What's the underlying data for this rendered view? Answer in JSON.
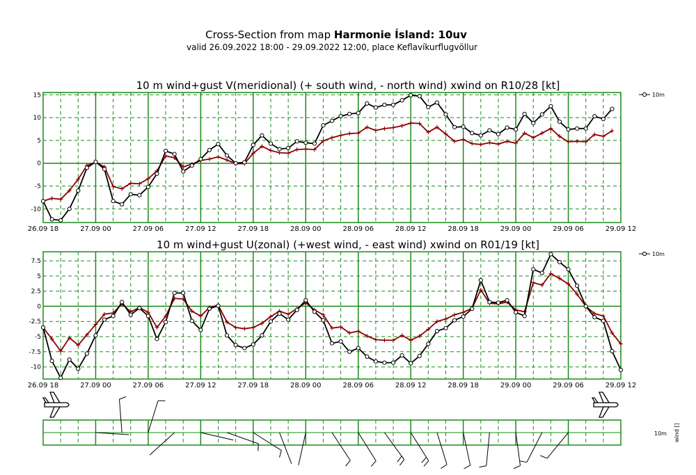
{
  "header": {
    "title_prefix": "Cross-Section from map ",
    "title_bold": "Harmonie Ísland: 10uv",
    "subtitle": "valid 26.09.2022 18:00 - 29.09.2022 12:00, place Keflavíkurflugvöllur"
  },
  "x_tick_labels": [
    "26.09 18",
    "27.09 00",
    "27.09 06",
    "27.09 12",
    "27.09 18",
    "28.09 00",
    "28.09 06",
    "28.09 12",
    "28.09 18",
    "29.09 00",
    "29.09 06",
    "29.09 12"
  ],
  "colors": {
    "grid": "#1a8a1a",
    "wind": "#000000",
    "xwind": "#8b0000"
  },
  "chart_data": [
    {
      "type": "line",
      "title": "10 m wind+gust V(meridional) (+ south wind, - north wind) xwind on R10/28 [kt]",
      "x_unit": "hours from 26.09 18:00",
      "ylim": [
        -13,
        15.5
      ],
      "yticks": [
        15,
        10,
        5,
        0,
        -5,
        -10
      ],
      "legend": "10m",
      "legend_position": "right",
      "grid": true,
      "series": [
        {
          "name": "10m",
          "marker": "circle",
          "color": "#000000",
          "values": [
            -8.3,
            -12.3,
            -12.5,
            -10,
            -6,
            -1,
            0.3,
            -1.3,
            -8.3,
            -9,
            -6.8,
            -7,
            -5.2,
            -2.3,
            2.7,
            2,
            -1.8,
            -0.5,
            0.9,
            2.9,
            4.2,
            1.7,
            0,
            0.2,
            4,
            6.1,
            4.3,
            3.1,
            3.3,
            4.8,
            4.5,
            4.3,
            8.3,
            9.3,
            10.3,
            10.8,
            11,
            13.1,
            12.2,
            12.8,
            12.8,
            13.8,
            14.9,
            14.7,
            12.3,
            13.3,
            10.7,
            7.9,
            8,
            6.6,
            6.1,
            7.2,
            6.4,
            7.8,
            7.4,
            10.8,
            8.8,
            10.7,
            12.5,
            9.1,
            7.4,
            7.6,
            7.6,
            10.3,
            9.7,
            11.9
          ]
        },
        {
          "marker": "plus",
          "color": "#8b0000",
          "values": [
            -8.3,
            -7.7,
            -7.9,
            -6,
            -3.5,
            -0.5,
            0.2,
            -0.8,
            -5.1,
            -5.6,
            -4.4,
            -4.5,
            -3.4,
            -1.7,
            1.6,
            1.2,
            -0.8,
            -0.2,
            0.6,
            0.9,
            1.4,
            0.7,
            -0.1,
            -0.1,
            2.2,
            3.7,
            2.8,
            2.3,
            2.2,
            3,
            3.1,
            3,
            4.9,
            5.6,
            6.1,
            6.5,
            6.6,
            7.9,
            7.2,
            7.6,
            7.8,
            8.2,
            8.8,
            8.7,
            6.8,
            7.9,
            6.4,
            4.8,
            5.2,
            4.3,
            4.1,
            4.5,
            4.2,
            4.8,
            4.4,
            6.6,
            5.6,
            6.6,
            7.6,
            5.9,
            4.7,
            4.8,
            4.7,
            6.3,
            5.9,
            7.1
          ]
        }
      ]
    },
    {
      "type": "line",
      "title": "10 m wind+gust U(zonal) (+west wind, - east wind) xwind on R01/19 [kt]",
      "x_unit": "hours from 26.09 18:00",
      "ylim": [
        -12,
        9
      ],
      "yticks": [
        7.5,
        5.0,
        2.5,
        0.0,
        -2.5,
        -5.0,
        -7.5,
        -10.0
      ],
      "legend": "10m",
      "legend_position": "right",
      "grid": true,
      "series": [
        {
          "name": "10m",
          "marker": "circle",
          "color": "#000000",
          "values": [
            -3.5,
            -9,
            -11.8,
            -8.8,
            -10.3,
            -7.8,
            -4.8,
            -2.2,
            -1.6,
            0.7,
            -1.4,
            -0.3,
            -1.6,
            -5.4,
            -2.6,
            2.2,
            2.2,
            -2.4,
            -3.9,
            -0.4,
            0.1,
            -4.8,
            -6.4,
            -6.9,
            -6.3,
            -4.8,
            -2.5,
            -1.2,
            -2.2,
            -0.6,
            1,
            -0.9,
            -2.3,
            -6.1,
            -5.8,
            -7.5,
            -6.9,
            -8.3,
            -9.1,
            -9.3,
            -9.3,
            -8.1,
            -9.4,
            -8.2,
            -6.2,
            -4.1,
            -3.6,
            -2.3,
            -1.7,
            -0.4,
            4.3,
            0.7,
            0.6,
            1,
            -1,
            -1.6,
            6.1,
            5.5,
            8.6,
            7.3,
            6.1,
            3.4,
            0,
            -1.8,
            -2.4,
            -7.4,
            -10.5
          ]
        },
        {
          "marker": "plus",
          "color": "#8b0000",
          "values": [
            -3.5,
            -5.4,
            -7.4,
            -5.2,
            -6.4,
            -4.7,
            -3,
            -1.3,
            -1.1,
            0.4,
            -0.9,
            -0.2,
            -1,
            -3.5,
            -1.6,
            1.3,
            1.2,
            -0.8,
            -1.6,
            -0.2,
            0.2,
            -2.6,
            -3.5,
            -3.7,
            -3.5,
            -2.8,
            -1.7,
            -0.8,
            -1.3,
            -0.4,
            0.6,
            -0.6,
            -1.4,
            -3.6,
            -3.4,
            -4.4,
            -4.1,
            -4.9,
            -5.5,
            -5.6,
            -5.6,
            -4.8,
            -5.6,
            -4.9,
            -3.8,
            -2.5,
            -2.1,
            -1.4,
            -1,
            -0.3,
            2.7,
            0.5,
            0.4,
            0.7,
            -0.6,
            -0.9,
            3.9,
            3.5,
            5.4,
            4.6,
            3.7,
            2,
            0,
            -1.2,
            -1.6,
            -4.4,
            -6.2
          ]
        }
      ]
    }
  ],
  "wind_strip": {
    "label_10m": "10m",
    "label_wind": "wind []"
  }
}
